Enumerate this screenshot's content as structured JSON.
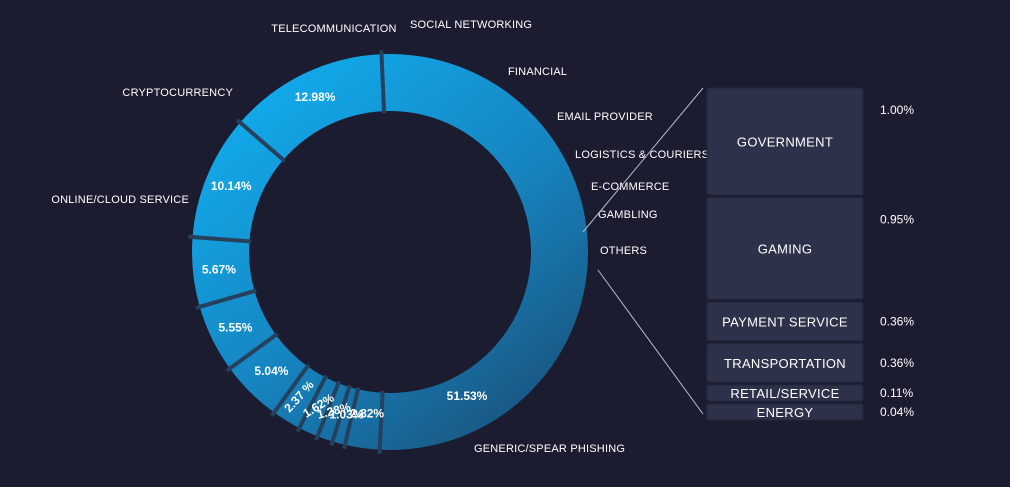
{
  "chart_data": [
    {
      "type": "pie",
      "variant": "donut",
      "unit": "%",
      "categories": [
        "GENERIC/SPEAR PHISHING",
        "ONLINE/CLOUD SERVICE",
        "CRYPTOCURRENCY",
        "TELECOMMUNICATION",
        "SOCIAL NETWORKING",
        "FINANCIAL",
        "EMAIL PROVIDER",
        "LOGISTICS & COURIERS",
        "E-COMMERCE",
        "GAMBLING",
        "OTHERS"
      ],
      "values": [
        51.53,
        12.98,
        10.14,
        5.67,
        5.55,
        5.04,
        2.37,
        1.62,
        1.28,
        1.03,
        2.82
      ],
      "value_labels": [
        "51.53%",
        "12.98%",
        "10.14%",
        "5.67%",
        "5.55%",
        "5.04%",
        "2.37 %",
        "1.62%",
        "1.28%",
        "1.03%",
        "2.82%"
      ],
      "colors": {
        "slice_light": "#12a9ea",
        "slice_mid": "#1684bf",
        "slice_dark": "#1a4f78",
        "separator": "#25415e"
      }
    },
    {
      "type": "bar",
      "variant": "stacked-breakdown-of-others",
      "orientation": "vertical-stack",
      "unit": "%",
      "categories": [
        "GOVERNMENT",
        "GAMING",
        "PAYMENT SERVICE",
        "TRANSPORTATION",
        "RETAIL/SERVICE",
        "ENERGY"
      ],
      "values": [
        1.0,
        0.95,
        0.36,
        0.36,
        0.11,
        0.04
      ],
      "value_labels": [
        "1.00%",
        "0.95%",
        "0.36%",
        "0.36%",
        "0.11%",
        "0.04%"
      ],
      "colors": {
        "box_fill": "#2d3149",
        "box_border": "#24283d",
        "connector": "#b9bccb"
      }
    }
  ],
  "colors": {
    "background": "#1b1c30",
    "text": "#ffffff"
  }
}
